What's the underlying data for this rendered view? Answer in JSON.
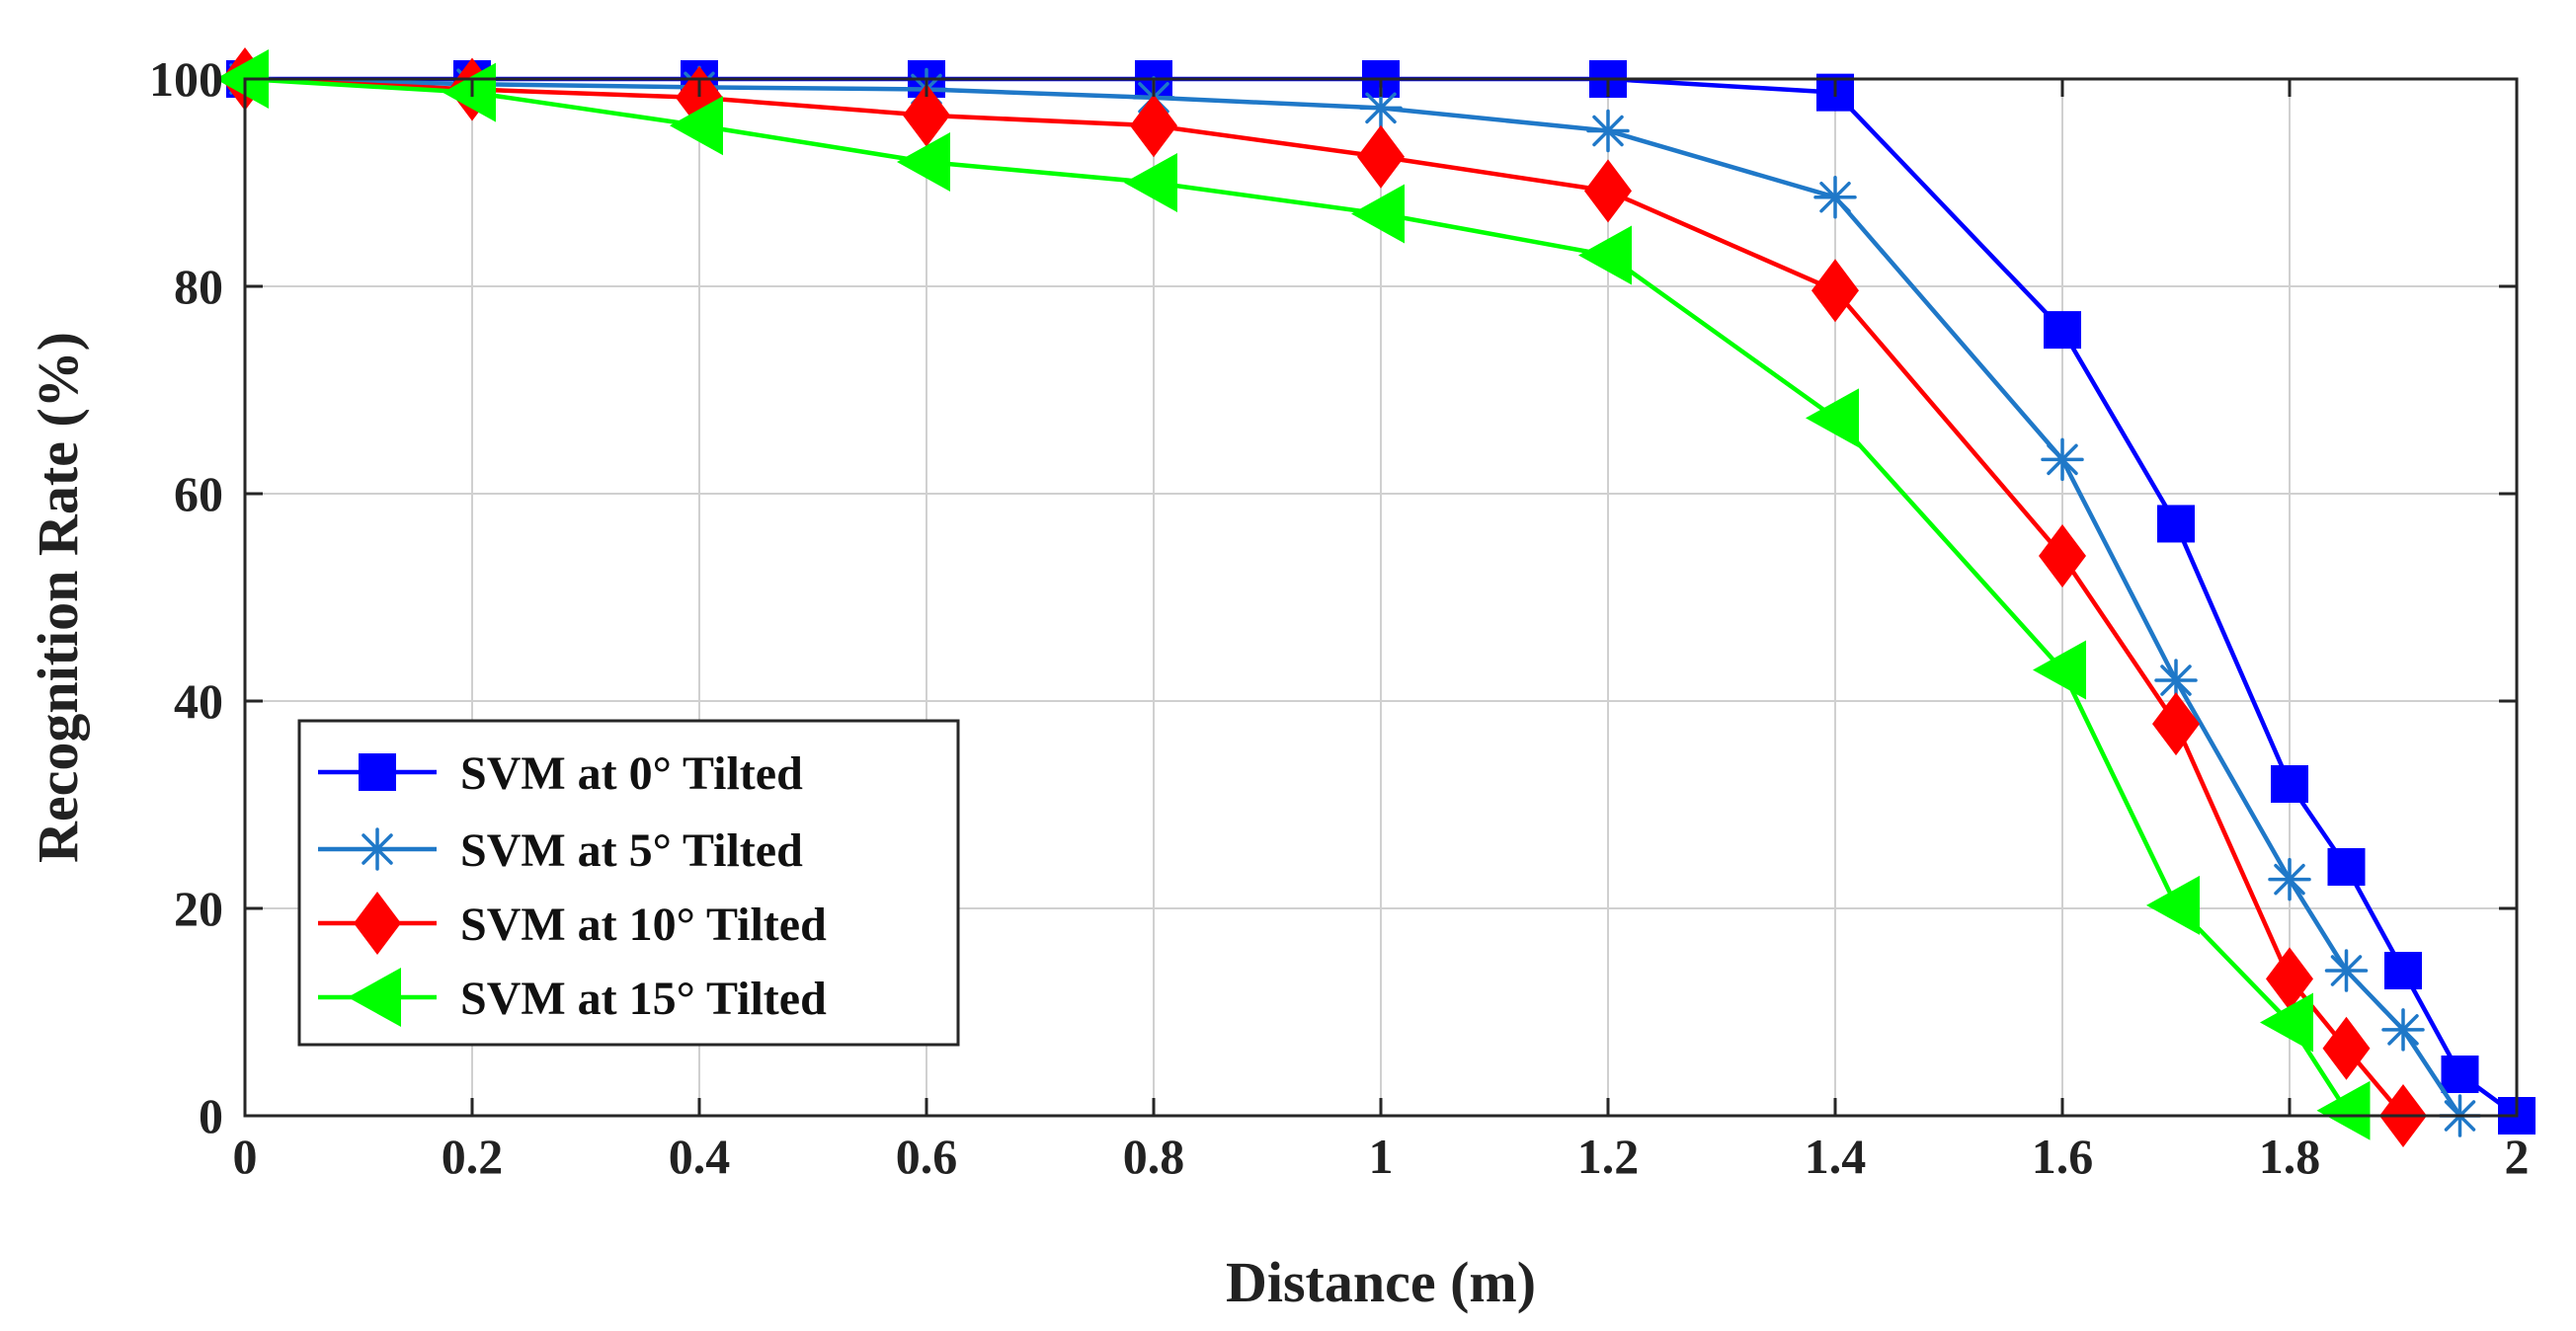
{
  "chart_data": {
    "type": "line",
    "title": "",
    "xlabel": "Distance (m)",
    "ylabel": "Recognition Rate (%)",
    "xlim": [
      0,
      2
    ],
    "ylim": [
      0,
      100
    ],
    "xticks": [
      0,
      0.2,
      0.4,
      0.6,
      0.8,
      1,
      1.2,
      1.4,
      1.6,
      1.8,
      2
    ],
    "xtick_labels": [
      "0",
      "0.2",
      "0.4",
      "0.6",
      "0.8",
      "1",
      "1.2",
      "1.4",
      "1.6",
      "1.8",
      "2"
    ],
    "yticks": [
      0,
      20,
      40,
      60,
      80,
      100
    ],
    "ytick_labels": [
      "0",
      "20",
      "40",
      "60",
      "80",
      "100"
    ],
    "grid": true,
    "legend_position": "lower-left",
    "series": [
      {
        "name": "SVM at 0° Tilted",
        "color": "#0000ff",
        "marker": "square",
        "x": [
          0,
          0.2,
          0.4,
          0.6,
          0.8,
          1,
          1.2,
          1.4,
          1.6,
          1.7,
          1.8,
          1.85,
          1.9,
          1.95,
          2
        ],
        "y": [
          100,
          100,
          100,
          100,
          100,
          100,
          100,
          98.7,
          75.8,
          57.1,
          32,
          24,
          14,
          4,
          0
        ]
      },
      {
        "name": "SVM at 5° Tilted",
        "color": "#1f78c8",
        "marker": "asterisk",
        "x": [
          0,
          0.2,
          0.4,
          0.6,
          0.8,
          1,
          1.2,
          1.4,
          1.6,
          1.7,
          1.8,
          1.85,
          1.9,
          1.95
        ],
        "y": [
          100,
          99.5,
          99.2,
          99,
          98.2,
          97.2,
          95,
          88.6,
          63.3,
          42,
          22.8,
          14,
          8.3,
          0
        ]
      },
      {
        "name": "SVM at 10° Tilted",
        "color": "#ff0000",
        "marker": "diamond",
        "x": [
          0,
          0.2,
          0.4,
          0.6,
          0.8,
          1,
          1.2,
          1.4,
          1.6,
          1.7,
          1.8,
          1.85,
          1.9
        ],
        "y": [
          100,
          99,
          98.2,
          96.5,
          95.5,
          92.5,
          89.2,
          79.6,
          54,
          37.8,
          13.2,
          6.5,
          0
        ]
      },
      {
        "name": "SVM at 15° Tilted",
        "color": "#00ff00",
        "marker": "triangle-left",
        "x": [
          0,
          0.2,
          0.4,
          0.6,
          0.8,
          1,
          1.2,
          1.4,
          1.6,
          1.7,
          1.8,
          1.85
        ],
        "y": [
          100,
          98.7,
          95.5,
          92,
          90,
          87,
          83,
          67.3,
          43,
          20.3,
          9,
          0.5
        ]
      }
    ]
  }
}
